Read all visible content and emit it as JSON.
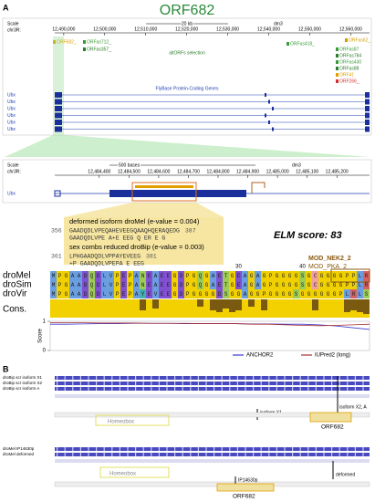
{
  "panel_a": {
    "label": "A",
    "title": "ORF682",
    "browser": {
      "scale": "Scale",
      "chrom": "chr3R:",
      "scale_bar": "20 kb",
      "assembly": "dm3",
      "xlim": [
        12487800,
        12564600
      ],
      "ticks": [
        {
          "value": 12490000,
          "label": "12,490,000"
        },
        {
          "value": 12500000,
          "label": "12,500,000"
        },
        {
          "value": 12510000,
          "label": "12,510,000"
        },
        {
          "value": 12520000,
          "label": "12,520,000"
        },
        {
          "value": 12530000,
          "label": "12,530,000"
        },
        {
          "value": 12540000,
          "label": "12,540,000"
        },
        {
          "value": 12550000,
          "label": "12,550,000"
        },
        {
          "value": 12560000,
          "label": "12,560,000"
        }
      ],
      "orfs": [
        {
          "label": "ORF682_",
          "color": "#e0a000"
        },
        {
          "label": "ORFas712_",
          "color": "#3a9a3a"
        },
        {
          "label": "ORFas357_",
          "color": "#2d7d2d"
        },
        {
          "label": "ORFas418_",
          "color": "#3a9a3a"
        },
        {
          "label": "ORFas62_",
          "color": "#d0a000"
        },
        {
          "label": "ORFas87",
          "color": "#3a9a3a"
        },
        {
          "label": "ORFas784",
          "color": "#2d7d2d"
        },
        {
          "label": "ORFas430",
          "color": "#3a9a3a"
        },
        {
          "label": "ORFas88",
          "color": "#2d7d2d"
        },
        {
          "label": "ORF41",
          "color": "#e0a000"
        },
        {
          "label": "ORF266_",
          "color": "#d03030"
        }
      ],
      "altorfs_label": "altORFs selection",
      "genes_label": "FlyBase Protein-Coding Genes",
      "genes": [
        "Ubx",
        "Ubx",
        "Ubx",
        "Ubx",
        "Ubx",
        "Ubx"
      ]
    },
    "zoom": {
      "scale": "Scale",
      "chrom": "chr3R:",
      "scale_bar": "500 bases",
      "assembly": "dm3",
      "xlim": [
        12484250,
        12485310
      ],
      "ticks": [
        {
          "value": 12484400,
          "label": "12,484,400"
        },
        {
          "value": 12484500,
          "label": "12,484,500"
        },
        {
          "value": 12484600,
          "label": "12,484,600"
        },
        {
          "value": 12484700,
          "label": "12,484,700"
        },
        {
          "value": 12484800,
          "label": "12,484,800"
        },
        {
          "value": 12484900,
          "label": "12,484,900"
        },
        {
          "value": 12485000,
          "label": "12,485,000"
        },
        {
          "value": 12485100,
          "label": "12,485,100"
        },
        {
          "value": 12485200,
          "label": "12,485,200"
        }
      ],
      "gene": "Ubx"
    },
    "hits": [
      {
        "title": "deformed isoform droMel (e-value = 0.004)",
        "start": 356,
        "query": "GAADQDLVPEQAHEVEEGQAAQHQERAQEDG",
        "end": 387,
        "match": "GAADQDLVPE A+E EEG    Q  ER E G"
      },
      {
        "title": "sex combs reduced droBip (e-value = 0.003)",
        "start": 361,
        "query": "LPHGAADQDLVPPAYEVEEG",
        "end": 381,
        "match": "+P GAADQDLVPEPA E EEG"
      }
    ],
    "elm_score": "ELM score: 83",
    "motifs": [
      "MOD_NEK2_2",
      "MOD_PKA_2"
    ],
    "alignment": {
      "rows": [
        {
          "species": "droMel",
          "sequence": "MPGAADQDLVPEPANEAEEGDPGQGAETGEAGAGPGGGGSGCGGGGPPLR"
        },
        {
          "species": "droSim",
          "sequence": "MPGAADQDLVPEPANEAEEGDPGQGAETGEAGAGPGGGGSGCGGGGPPLR"
        },
        {
          "species": "droVir",
          "sequence": "MPGAADQDLVPEPAYEVEEGDPGGGGDSGGAGGPGGGGSGGGGGGPLRLS"
        }
      ],
      "cons_label": "Cons.",
      "conservation": [
        10,
        10,
        10,
        10,
        10,
        10,
        10,
        10,
        10,
        10,
        10,
        10,
        10,
        10,
        4,
        10,
        5,
        10,
        10,
        10,
        10,
        10,
        10,
        6,
        10,
        4,
        3,
        5,
        3,
        4,
        10,
        6,
        10,
        4,
        10,
        10,
        10,
        10,
        10,
        10,
        10,
        4,
        10,
        10,
        10,
        10,
        3,
        4,
        3,
        2
      ],
      "ticks": [
        30,
        40
      ]
    },
    "score_plot": {
      "ylabel": "Score",
      "ylim": [
        0,
        1
      ],
      "yticks": [
        0,
        1
      ],
      "series": [
        {
          "name": "ANCHOR2",
          "color": "#3b3bd0",
          "values": [
            0.9,
            0.9,
            0.91,
            0.92,
            0.92,
            0.93,
            0.93,
            0.93,
            0.92,
            0.92,
            0.92,
            0.92,
            0.91,
            0.91,
            0.9,
            0.9,
            0.88,
            0.84,
            0.78,
            0.72
          ]
        },
        {
          "name": "IUPred2 (long)",
          "color": "#a83030",
          "values": [
            0.95,
            0.95,
            0.95,
            0.94,
            0.94,
            0.94,
            0.93,
            0.93,
            0.93,
            0.92,
            0.92,
            0.92,
            0.9,
            0.9,
            0.88,
            0.86,
            0.85,
            0.86,
            0.88,
            0.9
          ]
        }
      ]
    }
  },
  "panel_b": {
    "label": "B",
    "group1": {
      "tracks": [
        "droBip scr isoform X1",
        "droBip scr isoform X2",
        "droBip scr isoform A"
      ],
      "annotations": [
        "isoform X2, A",
        "isoform X1"
      ],
      "domain": "Homeobox",
      "orf": "ORF682"
    },
    "group2": {
      "tracks": [
        "droMel IP14630p",
        "droMel deformed"
      ],
      "annotations": [
        "deformed",
        "IP14630p"
      ],
      "domain": "Homeobox",
      "orf": "ORF682"
    }
  }
}
